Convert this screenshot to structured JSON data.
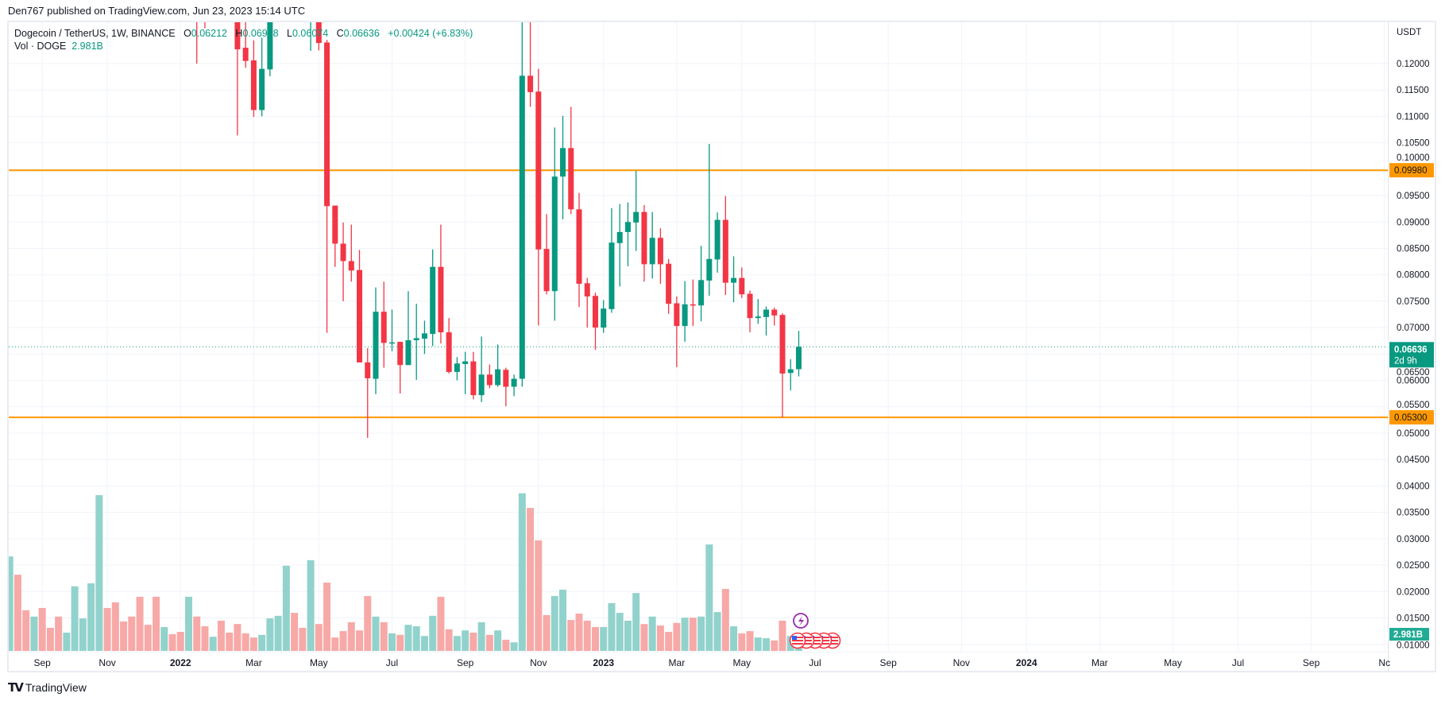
{
  "publish_line": "Den767 published on TradingView.com, Jun 23, 2023 15:14 UTC",
  "legend": {
    "symbol": "Dogecoin / TetherUS, 1W, BINANCE",
    "o_label": "O",
    "o": "0.06212",
    "h_label": "H",
    "h": "0.06938",
    "l_label": "L",
    "l": "0.06074",
    "c_label": "C",
    "c": "0.06636",
    "change": "+0.00424 (+6.83%)",
    "vol_label": "Vol · DOGE",
    "vol": "2.981B"
  },
  "logo": {
    "mark": "TV",
    "text": "TradingView"
  },
  "colors": {
    "up": "#089981",
    "down": "#f23645",
    "vol_up": "#92d2cc",
    "vol_down": "#f7a9a7",
    "level": "#ff9800",
    "vol_label": "#22ab94"
  },
  "chart_data": {
    "type": "candlestick",
    "interval": "1W",
    "currency": "USDT",
    "ylim": [
      0.01,
      0.125
    ],
    "grid": true,
    "price_axis": {
      "unit_label": "USDT",
      "ticks": [
        "0.12000",
        "0.11500",
        "0.11000",
        "0.10500",
        "0.10000",
        "0.09500",
        "0.09000",
        "0.08500",
        "0.08000",
        "0.07500",
        "0.07000",
        "0.06500",
        "0.06000",
        "0.05500",
        "0.05000",
        "0.04500",
        "0.04000",
        "0.03500",
        "0.03000",
        "0.02500",
        "0.02000",
        "0.01500",
        "0.01000"
      ]
    },
    "time_axis": {
      "ticks": [
        {
          "label": "Sep",
          "date": "2021-09-06"
        },
        {
          "label": "Nov",
          "date": "2021-11-01"
        },
        {
          "label": "2022",
          "date": "2022-01-03",
          "bold": true
        },
        {
          "label": "Mar",
          "date": "2022-03-07"
        },
        {
          "label": "May",
          "date": "2022-05-02"
        },
        {
          "label": "Jul",
          "date": "2022-07-04"
        },
        {
          "label": "Sep",
          "date": "2022-09-05"
        },
        {
          "label": "Nov",
          "date": "2022-11-07"
        },
        {
          "label": "2023",
          "date": "2023-01-02",
          "bold": true
        },
        {
          "label": "Mar",
          "date": "2023-03-06"
        },
        {
          "label": "May",
          "date": "2023-05-01"
        },
        {
          "label": "Jul",
          "date": "2023-07-03"
        },
        {
          "label": "Sep",
          "date": "2023-09-04"
        },
        {
          "label": "Nov",
          "date": "2023-11-06"
        },
        {
          "label": "2024",
          "date": "2024-01-01",
          "bold": true
        },
        {
          "label": "Mar",
          "date": "2024-03-04"
        },
        {
          "label": "May",
          "date": "2024-05-06"
        },
        {
          "label": "Jul",
          "date": "2024-07-01"
        },
        {
          "label": "Sep",
          "date": "2024-09-02"
        },
        {
          "label": "Nc",
          "date": "2024-11-04"
        }
      ]
    },
    "levels": [
      {
        "value": 0.0998,
        "label": "0.09980"
      },
      {
        "value": 0.053,
        "label": "0.05300"
      }
    ],
    "last_price": {
      "value": 0.06636,
      "label": "0.06636",
      "countdown": "2d 9h"
    },
    "last_volume_label": "2.981B",
    "volume_unit": "B DOGE",
    "candle_fields": [
      "date",
      "open",
      "high",
      "low",
      "close",
      "volume",
      "direction"
    ],
    "candles": [
      [
        "2021-08-09",
        null,
        null,
        null,
        null,
        25.3,
        "up"
      ],
      [
        "2021-08-16",
        null,
        null,
        null,
        null,
        20.4,
        "down"
      ],
      [
        "2021-08-23",
        null,
        null,
        null,
        null,
        10.9,
        "down"
      ],
      [
        "2021-08-30",
        null,
        null,
        null,
        null,
        9.2,
        "up"
      ],
      [
        "2021-09-06",
        null,
        null,
        null,
        null,
        11.5,
        "down"
      ],
      [
        "2021-09-13",
        null,
        null,
        null,
        null,
        6.2,
        "down"
      ],
      [
        "2021-09-20",
        null,
        null,
        null,
        null,
        9.2,
        "down"
      ],
      [
        "2021-09-27",
        null,
        null,
        null,
        null,
        4.9,
        "up"
      ],
      [
        "2021-10-04",
        null,
        null,
        null,
        null,
        17.3,
        "up"
      ],
      [
        "2021-10-11",
        null,
        null,
        null,
        null,
        8.7,
        "up"
      ],
      [
        "2021-10-18",
        null,
        null,
        null,
        null,
        18.1,
        "up"
      ],
      [
        "2021-10-25",
        null,
        null,
        null,
        null,
        41.7,
        "up"
      ],
      [
        "2021-11-01",
        null,
        null,
        null,
        null,
        11.5,
        "down"
      ],
      [
        "2021-11-08",
        null,
        null,
        null,
        null,
        13.0,
        "down"
      ],
      [
        "2021-11-15",
        null,
        null,
        null,
        null,
        7.9,
        "down"
      ],
      [
        "2021-11-22",
        null,
        null,
        null,
        null,
        9.2,
        "down"
      ],
      [
        "2021-11-29",
        null,
        null,
        null,
        null,
        14.5,
        "down"
      ],
      [
        "2021-12-06",
        null,
        null,
        null,
        null,
        7.0,
        "down"
      ],
      [
        "2021-12-13",
        null,
        null,
        null,
        null,
        14.5,
        "down"
      ],
      [
        "2021-12-20",
        null,
        null,
        null,
        null,
        6.4,
        "up"
      ],
      [
        "2021-12-27",
        null,
        null,
        null,
        null,
        4.5,
        "down"
      ],
      [
        "2022-01-03",
        null,
        null,
        null,
        null,
        5.1,
        "down"
      ],
      [
        "2022-01-10",
        null,
        null,
        null,
        null,
        14.5,
        "up"
      ],
      [
        "2022-01-17",
        null,
        null,
        0.12,
        null,
        9.2,
        "down"
      ],
      [
        "2022-01-24",
        null,
        null,
        0.1267,
        null,
        6.6,
        "down"
      ],
      [
        "2022-01-31",
        null,
        null,
        null,
        null,
        3.8,
        "up"
      ],
      [
        "2022-02-07",
        null,
        null,
        null,
        null,
        8.1,
        "down"
      ],
      [
        "2022-02-14",
        null,
        null,
        null,
        null,
        4.9,
        "down"
      ],
      [
        "2022-02-21",
        null,
        null,
        0.1064,
        0.1227,
        7.2,
        "down"
      ],
      [
        "2022-02-28",
        0.123,
        null,
        0.1192,
        0.1205,
        4.7,
        "down"
      ],
      [
        "2022-03-07",
        0.1206,
        0.1244,
        0.1099,
        0.1112,
        3.6,
        "down"
      ],
      [
        "2022-03-14",
        0.1112,
        0.1249,
        0.11,
        0.119,
        4.3,
        "up"
      ],
      [
        "2022-03-21",
        0.1189,
        null,
        0.1176,
        null,
        8.7,
        "up"
      ],
      [
        "2022-03-28",
        null,
        null,
        null,
        null,
        9.4,
        "up"
      ],
      [
        "2022-04-04",
        null,
        null,
        null,
        null,
        22.8,
        "up"
      ],
      [
        "2022-04-11",
        null,
        null,
        null,
        null,
        10.2,
        "down"
      ],
      [
        "2022-04-18",
        null,
        null,
        null,
        null,
        6.2,
        "down"
      ],
      [
        "2022-04-25",
        null,
        null,
        0.1224,
        null,
        24.3,
        "up"
      ],
      [
        "2022-05-02",
        null,
        null,
        0.1225,
        0.1239,
        7.2,
        "down"
      ],
      [
        "2022-05-09",
        0.124,
        0.1245,
        0.069,
        0.093,
        18.3,
        "down"
      ],
      [
        "2022-05-16",
        0.0931,
        0.0931,
        0.0815,
        0.0859,
        3.6,
        "down"
      ],
      [
        "2022-05-23",
        0.0859,
        0.0899,
        0.075,
        0.0826,
        5.3,
        "down"
      ],
      [
        "2022-05-30",
        0.0826,
        0.0895,
        0.0787,
        0.0808,
        7.7,
        "down"
      ],
      [
        "2022-06-06",
        0.0809,
        0.0847,
        0.0634,
        0.0634,
        5.5,
        "down"
      ],
      [
        "2022-06-13",
        0.0634,
        0.0661,
        0.0491,
        0.0604,
        14.7,
        "down"
      ],
      [
        "2022-06-20",
        0.0603,
        0.0776,
        0.0574,
        0.073,
        9.2,
        "up"
      ],
      [
        "2022-06-27",
        0.073,
        0.0787,
        0.0624,
        0.0671,
        7.7,
        "down"
      ],
      [
        "2022-07-04",
        0.0671,
        0.0734,
        0.0655,
        0.0672,
        4.7,
        "up"
      ],
      [
        "2022-07-11",
        0.0673,
        0.0673,
        0.0575,
        0.0629,
        4.3,
        "down"
      ],
      [
        "2022-07-18",
        0.0629,
        0.0769,
        0.0629,
        0.0676,
        7.0,
        "up"
      ],
      [
        "2022-07-25",
        0.0676,
        0.0745,
        0.0601,
        0.068,
        6.6,
        "up"
      ],
      [
        "2022-08-01",
        0.0679,
        0.0713,
        0.065,
        0.0689,
        4.0,
        "up"
      ],
      [
        "2022-08-08",
        0.0688,
        0.0848,
        0.0665,
        0.0815,
        9.4,
        "up"
      ],
      [
        "2022-08-15",
        0.0815,
        0.0895,
        0.067,
        0.0691,
        14.5,
        "down"
      ],
      [
        "2022-08-22",
        0.0691,
        0.0718,
        0.0613,
        0.0616,
        5.8,
        "down"
      ],
      [
        "2022-08-29",
        0.0616,
        0.0644,
        0.06,
        0.0632,
        4.0,
        "up"
      ],
      [
        "2022-09-05",
        0.0631,
        0.0654,
        0.0574,
        0.0636,
        5.5,
        "up"
      ],
      [
        "2022-09-12",
        0.0636,
        0.0654,
        0.0564,
        0.0572,
        4.9,
        "down"
      ],
      [
        "2022-09-19",
        0.0572,
        0.0683,
        0.0559,
        0.0611,
        7.7,
        "up"
      ],
      [
        "2022-09-26",
        0.0611,
        0.063,
        0.0585,
        0.0591,
        4.3,
        "down"
      ],
      [
        "2022-10-03",
        0.0591,
        0.0668,
        0.0588,
        0.0621,
        5.5,
        "up"
      ],
      [
        "2022-10-10",
        0.062,
        0.0624,
        0.0551,
        0.0588,
        3.0,
        "down"
      ],
      [
        "2022-10-17",
        0.0588,
        0.0611,
        0.057,
        0.0603,
        2.3,
        "up"
      ],
      [
        "2022-10-24",
        0.0603,
        null,
        0.0588,
        0.1177,
        42.2,
        "up"
      ],
      [
        "2022-10-31",
        0.1177,
        null,
        0.1118,
        0.1146,
        38.3,
        "down"
      ],
      [
        "2022-11-07",
        0.1147,
        0.119,
        0.0704,
        0.0848,
        29.6,
        "down"
      ],
      [
        "2022-11-14",
        0.0849,
        0.0915,
        0.0763,
        0.0769,
        9.6,
        "down"
      ],
      [
        "2022-11-21",
        0.0769,
        0.1079,
        0.0713,
        0.0986,
        14.7,
        "up"
      ],
      [
        "2022-11-28",
        0.0986,
        0.1101,
        0.0905,
        0.104,
        16.4,
        "up"
      ],
      [
        "2022-12-05",
        0.104,
        0.1118,
        0.0915,
        0.0924,
        8.3,
        "down"
      ],
      [
        "2022-12-12",
        0.0924,
        0.0955,
        0.0739,
        0.0783,
        10.0,
        "down"
      ],
      [
        "2022-12-19",
        0.0784,
        0.0794,
        0.07,
        0.0759,
        8.1,
        "down"
      ],
      [
        "2022-12-26",
        0.076,
        0.0766,
        0.0658,
        0.07,
        6.4,
        "down"
      ],
      [
        "2023-01-02",
        0.07,
        0.0752,
        0.069,
        0.0736,
        6.4,
        "up"
      ],
      [
        "2023-01-09",
        0.0735,
        0.0926,
        0.0728,
        0.0861,
        12.8,
        "up"
      ],
      [
        "2023-01-16",
        0.086,
        0.0934,
        0.0778,
        0.0881,
        10.2,
        "up"
      ],
      [
        "2023-01-23",
        0.0881,
        0.0937,
        0.0816,
        0.09,
        8.1,
        "up"
      ],
      [
        "2023-01-30",
        0.0899,
        0.0997,
        0.0845,
        0.0919,
        15.5,
        "up"
      ],
      [
        "2023-02-06",
        0.0919,
        0.0932,
        0.0787,
        0.082,
        7.2,
        "down"
      ],
      [
        "2023-02-13",
        0.082,
        0.0919,
        0.0793,
        0.087,
        9.2,
        "up"
      ],
      [
        "2023-02-20",
        0.087,
        0.0888,
        0.0783,
        0.082,
        6.8,
        "down"
      ],
      [
        "2023-02-27",
        0.0821,
        0.083,
        0.0726,
        0.0745,
        5.1,
        "down"
      ],
      [
        "2023-03-06",
        0.0746,
        0.0759,
        0.0625,
        0.0703,
        7.5,
        "down"
      ],
      [
        "2023-03-13",
        0.0703,
        0.0788,
        0.0673,
        0.0744,
        8.9,
        "up"
      ],
      [
        "2023-03-20",
        0.0744,
        0.0791,
        0.0703,
        0.0742,
        8.9,
        "down"
      ],
      [
        "2023-03-27",
        0.0742,
        0.0855,
        0.0712,
        0.079,
        9.2,
        "up"
      ],
      [
        "2023-04-03",
        0.0789,
        0.1048,
        0.076,
        0.083,
        28.5,
        "up"
      ],
      [
        "2023-04-10",
        0.0829,
        0.0918,
        0.0804,
        0.0904,
        10.4,
        "up"
      ],
      [
        "2023-04-17",
        0.0904,
        0.0949,
        0.0762,
        0.0785,
        16.6,
        "down"
      ],
      [
        "2023-04-24",
        0.0785,
        0.0835,
        0.0748,
        0.0794,
        6.6,
        "up"
      ],
      [
        "2023-05-01",
        0.0794,
        0.0814,
        0.0756,
        0.0763,
        4.7,
        "down"
      ],
      [
        "2023-05-08",
        0.0764,
        0.077,
        0.0691,
        0.0718,
        5.3,
        "down"
      ],
      [
        "2023-05-15",
        0.0718,
        0.0754,
        0.0707,
        0.0721,
        3.6,
        "up"
      ],
      [
        "2023-05-22",
        0.072,
        0.074,
        0.0685,
        0.0734,
        3.4,
        "up"
      ],
      [
        "2023-05-29",
        0.0734,
        0.0738,
        0.0704,
        0.0723,
        2.8,
        "down"
      ],
      [
        "2023-06-05",
        0.0724,
        0.0727,
        0.053,
        0.0613,
        8.1,
        "down"
      ],
      [
        "2023-06-12",
        0.0614,
        0.064,
        0.0581,
        0.0621,
        4.0,
        "up"
      ],
      [
        "2023-06-19",
        0.06212,
        0.06938,
        0.06074,
        0.06636,
        2.981,
        "up"
      ]
    ],
    "event_icons": [
      "lightning-icon",
      "us-flag-icon",
      "us-flag-icon",
      "us-flag-icon",
      "us-flag-icon",
      "us-flag-icon"
    ]
  }
}
